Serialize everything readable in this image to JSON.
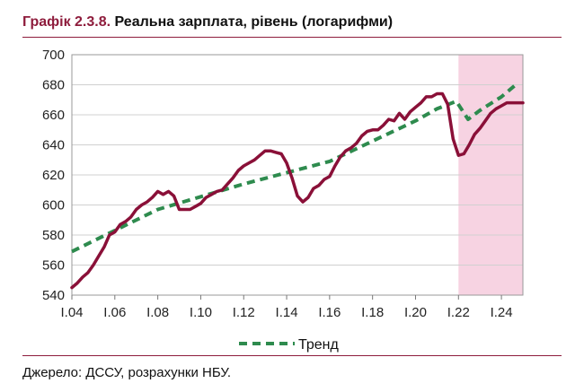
{
  "header": {
    "label": "Графік 2.3.8.",
    "title": "Реальна зарплата, рівень (логарифми)"
  },
  "source": "Джерело: ДССУ, розрахунки НБУ.",
  "colors": {
    "accent": "#8e1c3c",
    "actual_line": "#8a1038",
    "trend_line": "#2e8b4e",
    "forecast_band": "#f7d3e2"
  },
  "chart_data": {
    "type": "line",
    "title": "Реальна зарплата, рівень (логарифми)",
    "xlabel": "",
    "ylabel": "",
    "xlim": [
      2004,
      2025
    ],
    "ylim": [
      540,
      700
    ],
    "yticks": [
      540,
      560,
      580,
      600,
      620,
      640,
      660,
      680,
      700
    ],
    "xticks": [
      {
        "x": 2004,
        "label": "I.04"
      },
      {
        "x": 2006,
        "label": "I.06"
      },
      {
        "x": 2008,
        "label": "I.08"
      },
      {
        "x": 2010,
        "label": "I.10"
      },
      {
        "x": 2012,
        "label": "I.12"
      },
      {
        "x": 2014,
        "label": "I.14"
      },
      {
        "x": 2016,
        "label": "I.16"
      },
      {
        "x": 2018,
        "label": "I.18"
      },
      {
        "x": 2020,
        "label": "I.20"
      },
      {
        "x": 2022,
        "label": "I.22"
      },
      {
        "x": 2024,
        "label": "I.24"
      }
    ],
    "grid": "horizontal",
    "legend_position": "bottom-center",
    "shaded_region": {
      "x0": 2022,
      "x1": 2025
    },
    "series": [
      {
        "key": "actual",
        "style": "solid",
        "x": [
          2004,
          2004.25,
          2004.5,
          2004.75,
          2005,
          2005.25,
          2005.5,
          2005.75,
          2006,
          2006.25,
          2006.5,
          2006.75,
          2007,
          2007.25,
          2007.5,
          2007.75,
          2008,
          2008.25,
          2008.5,
          2008.75,
          2009,
          2009.25,
          2009.5,
          2009.75,
          2010,
          2010.25,
          2010.5,
          2010.75,
          2011,
          2011.25,
          2011.5,
          2011.75,
          2012,
          2012.25,
          2012.5,
          2012.75,
          2013,
          2013.25,
          2013.5,
          2013.75,
          2014,
          2014.25,
          2014.5,
          2014.75,
          2015,
          2015.25,
          2015.5,
          2015.75,
          2016,
          2016.25,
          2016.5,
          2016.75,
          2017,
          2017.25,
          2017.5,
          2017.75,
          2018,
          2018.25,
          2018.5,
          2018.75,
          2019,
          2019.25,
          2019.5,
          2019.75,
          2020,
          2020.25,
          2020.5,
          2020.75,
          2021,
          2021.25,
          2021.5,
          2021.75,
          2022,
          2022.25,
          2022.5,
          2022.75,
          2023,
          2023.25,
          2023.5,
          2023.75,
          2024,
          2024.25,
          2024.5,
          2024.75,
          2025
        ],
        "y": [
          545,
          548,
          552,
          555,
          560,
          566,
          572,
          580,
          582,
          587,
          589,
          592,
          597,
          600,
          602,
          605,
          609,
          607,
          609,
          606,
          597,
          597,
          597,
          599,
          601,
          605,
          607,
          609,
          610,
          614,
          618,
          623,
          626,
          628,
          630,
          633,
          636,
          636,
          635,
          634,
          628,
          618,
          606,
          602,
          605,
          611,
          613,
          617,
          619,
          626,
          632,
          636,
          638,
          641,
          646,
          649,
          650,
          650,
          653,
          657,
          656,
          661,
          657,
          662,
          665,
          668,
          672,
          672,
          674,
          674,
          667,
          644,
          633,
          634,
          640,
          647,
          651,
          656,
          661,
          664,
          666,
          668,
          668,
          668,
          668
        ]
      },
      {
        "key": "trend",
        "name": "Тренд",
        "style": "dashed",
        "x": [
          2004,
          2008,
          2012,
          2016,
          2020,
          2021,
          2021.9,
          2022.45,
          2023,
          2024,
          2024.75
        ],
        "y": [
          569,
          597,
          614,
          629,
          656,
          664,
          669,
          657,
          663,
          672,
          681
        ]
      }
    ]
  }
}
